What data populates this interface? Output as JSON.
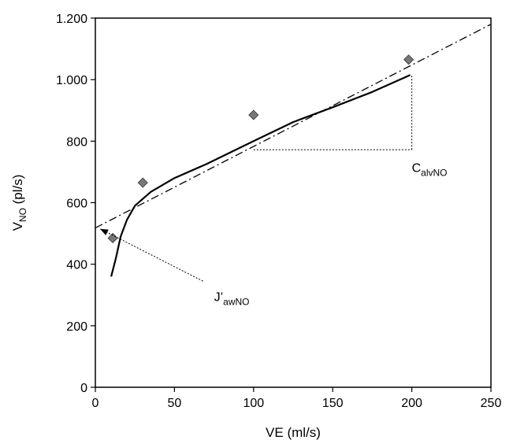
{
  "chart_data": {
    "type": "scatter",
    "xlabel": "VE (ml/s)",
    "ylabel": {
      "main": "V",
      "sub": "NO",
      "rest": " (pl/s)"
    },
    "xlim": [
      0,
      250
    ],
    "ylim": [
      0,
      1200
    ],
    "x_ticks": [
      0,
      50,
      100,
      150,
      200,
      250
    ],
    "y_ticks": [
      0,
      200,
      400,
      600,
      800,
      1000,
      1200
    ],
    "x_tick_labels": [
      "0",
      "50",
      "100",
      "150",
      "200",
      "250"
    ],
    "y_tick_labels": [
      "0",
      "200",
      "400",
      "600",
      "800",
      "1.000",
      "1.200"
    ],
    "grid": false,
    "series": [
      {
        "kind": "scatter",
        "marker": "diamond",
        "color": "#777777",
        "points": [
          {
            "x": 11,
            "y": 485
          },
          {
            "x": 30,
            "y": 665
          },
          {
            "x": 100,
            "y": 885
          },
          {
            "x": 198,
            "y": 1065
          }
        ]
      },
      {
        "kind": "curve",
        "style": "solid",
        "color": "#000000",
        "points": [
          {
            "x": 10,
            "y": 360
          },
          {
            "x": 13,
            "y": 420
          },
          {
            "x": 16,
            "y": 490
          },
          {
            "x": 20,
            "y": 545
          },
          {
            "x": 25,
            "y": 590
          },
          {
            "x": 35,
            "y": 635
          },
          {
            "x": 50,
            "y": 680
          },
          {
            "x": 70,
            "y": 725
          },
          {
            "x": 100,
            "y": 800
          },
          {
            "x": 125,
            "y": 862
          },
          {
            "x": 150,
            "y": 910
          },
          {
            "x": 175,
            "y": 960
          },
          {
            "x": 199,
            "y": 1015
          }
        ]
      },
      {
        "kind": "line",
        "style": "dash-dot",
        "color": "#000000",
        "points": [
          {
            "x": 0,
            "y": 518
          },
          {
            "x": 250,
            "y": 1180
          }
        ]
      }
    ],
    "annotations": [
      {
        "id": "calv",
        "label": {
          "main": "C",
          "sub": "alvNO"
        },
        "label_at": {
          "x": 200,
          "y": 700
        },
        "triangle": {
          "horizontal": {
            "x1": 100,
            "x2": 200,
            "y": 772
          },
          "vertical": {
            "x": 200,
            "y1": 772,
            "y2": 1015
          }
        }
      },
      {
        "id": "jaw",
        "label": {
          "main": "J’",
          "sub": "awNO"
        },
        "label_at": {
          "x": 75,
          "y": 280
        },
        "arrow": {
          "from": {
            "x": 68,
            "y": 345
          },
          "to": {
            "x": 3,
            "y": 515
          }
        }
      }
    ]
  }
}
